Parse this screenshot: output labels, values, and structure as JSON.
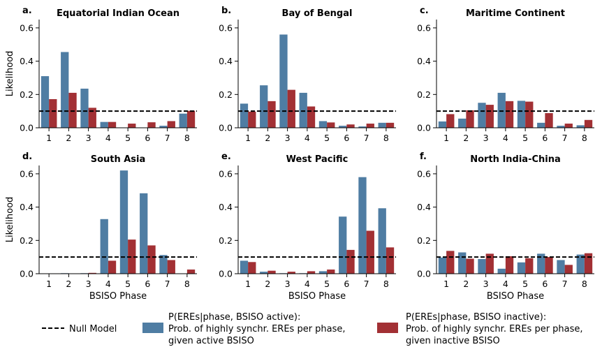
{
  "colors": {
    "active": "#4f7da3",
    "inactive": "#a23034",
    "null": "#000000"
  },
  "legend": {
    "null_label": "Null Model",
    "active_lines": [
      "P(EREs|phase, BSISO active):",
      "Prob. of highly synchr. EREs per phase,",
      "given active BSISO"
    ],
    "inactive_lines": [
      "P(EREs|phase, BSISO inactive):",
      "Prob. of highly synchr. EREs per phase,",
      "given inactive BSISO"
    ]
  },
  "chart_data": [
    {
      "type": "bar",
      "letter": "a.",
      "title": "Equatorial Indian Ocean",
      "ylabel": "Likelihood",
      "xlabel": "",
      "categories": [
        "1",
        "2",
        "3",
        "4",
        "5",
        "6",
        "7",
        "8"
      ],
      "ylim": [
        0,
        0.65
      ],
      "yticks": [
        "0.0",
        "0.2",
        "0.4",
        "0.6"
      ],
      "null_value": 0.1,
      "series": [
        {
          "key": "active",
          "values": [
            0.31,
            0.455,
            0.235,
            0.035,
            0.0,
            0.0,
            0.012,
            0.085
          ]
        },
        {
          "key": "inactive",
          "values": [
            0.172,
            0.21,
            0.12,
            0.035,
            0.025,
            0.033,
            0.04,
            0.102
          ]
        }
      ]
    },
    {
      "type": "bar",
      "letter": "b.",
      "title": "Bay of Bengal",
      "ylabel": "",
      "xlabel": "",
      "categories": [
        "1",
        "2",
        "3",
        "4",
        "5",
        "6",
        "7",
        "8"
      ],
      "ylim": [
        0,
        0.65
      ],
      "yticks": [
        "0.0",
        "0.2",
        "0.4",
        "0.6"
      ],
      "null_value": 0.1,
      "series": [
        {
          "key": "active",
          "values": [
            0.145,
            0.255,
            0.56,
            0.21,
            0.04,
            0.012,
            0.008,
            0.03
          ]
        },
        {
          "key": "inactive",
          "values": [
            0.097,
            0.16,
            0.228,
            0.128,
            0.032,
            0.02,
            0.025,
            0.03
          ]
        }
      ]
    },
    {
      "type": "bar",
      "letter": "c.",
      "title": "Maritime Continent",
      "ylabel": "",
      "xlabel": "",
      "categories": [
        "1",
        "2",
        "3",
        "4",
        "5",
        "6",
        "7",
        "8"
      ],
      "ylim": [
        0,
        0.65
      ],
      "yticks": [
        "0.0",
        "0.2",
        "0.4",
        "0.6"
      ],
      "null_value": 0.1,
      "series": [
        {
          "key": "active",
          "values": [
            0.038,
            0.055,
            0.15,
            0.21,
            0.162,
            0.03,
            0.012,
            0.015
          ]
        },
        {
          "key": "inactive",
          "values": [
            0.082,
            0.105,
            0.138,
            0.16,
            0.157,
            0.088,
            0.025,
            0.047
          ]
        }
      ]
    },
    {
      "type": "bar",
      "letter": "d.",
      "title": "South Asia",
      "ylabel": "Likelihood",
      "xlabel": "BSISO Phase",
      "categories": [
        "1",
        "2",
        "3",
        "4",
        "5",
        "6",
        "7",
        "8"
      ],
      "ylim": [
        0,
        0.65
      ],
      "yticks": [
        "0.0",
        "0.2",
        "0.4",
        "0.6"
      ],
      "null_value": 0.1,
      "series": [
        {
          "key": "active",
          "values": [
            0.0,
            0.003,
            0.003,
            0.328,
            0.62,
            0.483,
            0.112,
            0.0
          ]
        },
        {
          "key": "inactive",
          "values": [
            0.0,
            0.0,
            0.005,
            0.078,
            0.205,
            0.17,
            0.082,
            0.025
          ]
        }
      ]
    },
    {
      "type": "bar",
      "letter": "e.",
      "title": "West Pacific",
      "ylabel": "",
      "xlabel": "BSISO Phase",
      "categories": [
        "1",
        "2",
        "3",
        "4",
        "5",
        "6",
        "7",
        "8"
      ],
      "ylim": [
        0,
        0.65
      ],
      "yticks": [
        "0.0",
        "0.2",
        "0.4",
        "0.6"
      ],
      "null_value": 0.1,
      "series": [
        {
          "key": "active",
          "values": [
            0.078,
            0.012,
            0.003,
            0.003,
            0.015,
            0.343,
            0.58,
            0.393
          ]
        },
        {
          "key": "inactive",
          "values": [
            0.07,
            0.018,
            0.012,
            0.015,
            0.025,
            0.143,
            0.258,
            0.158
          ]
        }
      ]
    },
    {
      "type": "bar",
      "letter": "f.",
      "title": "North India-China",
      "ylabel": "",
      "xlabel": "BSISO Phase",
      "categories": [
        "1",
        "2",
        "3",
        "4",
        "5",
        "6",
        "7",
        "8"
      ],
      "ylim": [
        0,
        0.65
      ],
      "yticks": [
        "0.0",
        "0.2",
        "0.4",
        "0.6"
      ],
      "null_value": 0.1,
      "series": [
        {
          "key": "active",
          "values": [
            0.097,
            0.128,
            0.088,
            0.03,
            0.068,
            0.12,
            0.082,
            0.115
          ]
        },
        {
          "key": "inactive",
          "values": [
            0.137,
            0.09,
            0.12,
            0.105,
            0.093,
            0.1,
            0.053,
            0.123
          ]
        }
      ]
    }
  ]
}
